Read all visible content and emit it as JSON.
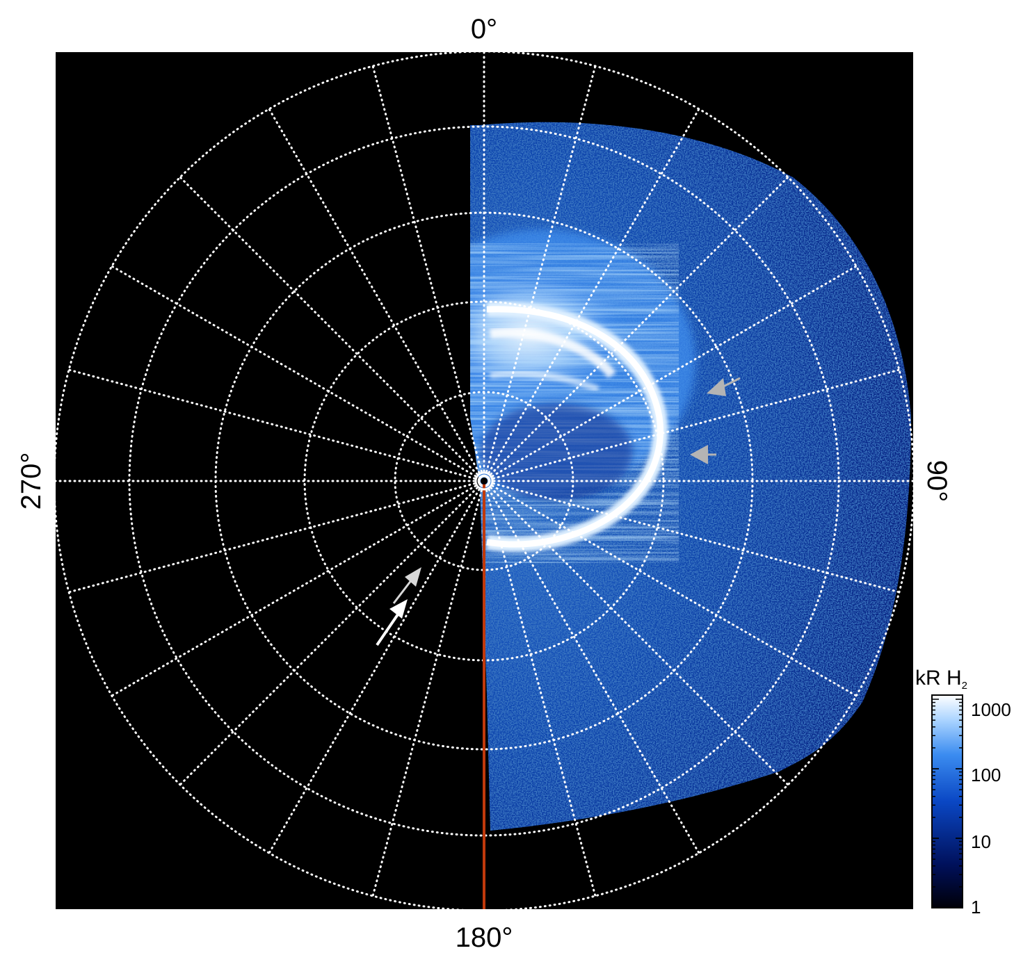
{
  "figure": {
    "orientation_labels": {
      "top": "0°",
      "right": "90°",
      "bottom": "180°",
      "left": "270°"
    },
    "colorbar": {
      "title_main": "kR H",
      "title_sub": "2",
      "scale": "log",
      "tick_labels": [
        "1000",
        "100",
        "10",
        "1"
      ],
      "colors": [
        "#000008",
        "#00105a",
        "#0a47c4",
        "#3b8cf0",
        "#a9d3ff",
        "#ffffff"
      ]
    },
    "projection": {
      "type": "polar",
      "center_marker": "circle-marker",
      "rings_count": 5,
      "spokes_count": 24
    },
    "colors": {
      "background": "#000000",
      "grid": "#ffffff",
      "meridian_line": "#c0390b",
      "arrow_white": "#ffffff",
      "arrow_grey": "#b4b4b4",
      "aurora_bright": "#ffffff",
      "emission_blue": "#1a6fe0"
    },
    "annotations": [
      {
        "name": "white-arrow-1",
        "color": "white"
      },
      {
        "name": "white-arrow-2",
        "color": "white"
      },
      {
        "name": "grey-arrow-1",
        "color": "grey"
      },
      {
        "name": "grey-arrow-2",
        "color": "grey"
      }
    ]
  }
}
